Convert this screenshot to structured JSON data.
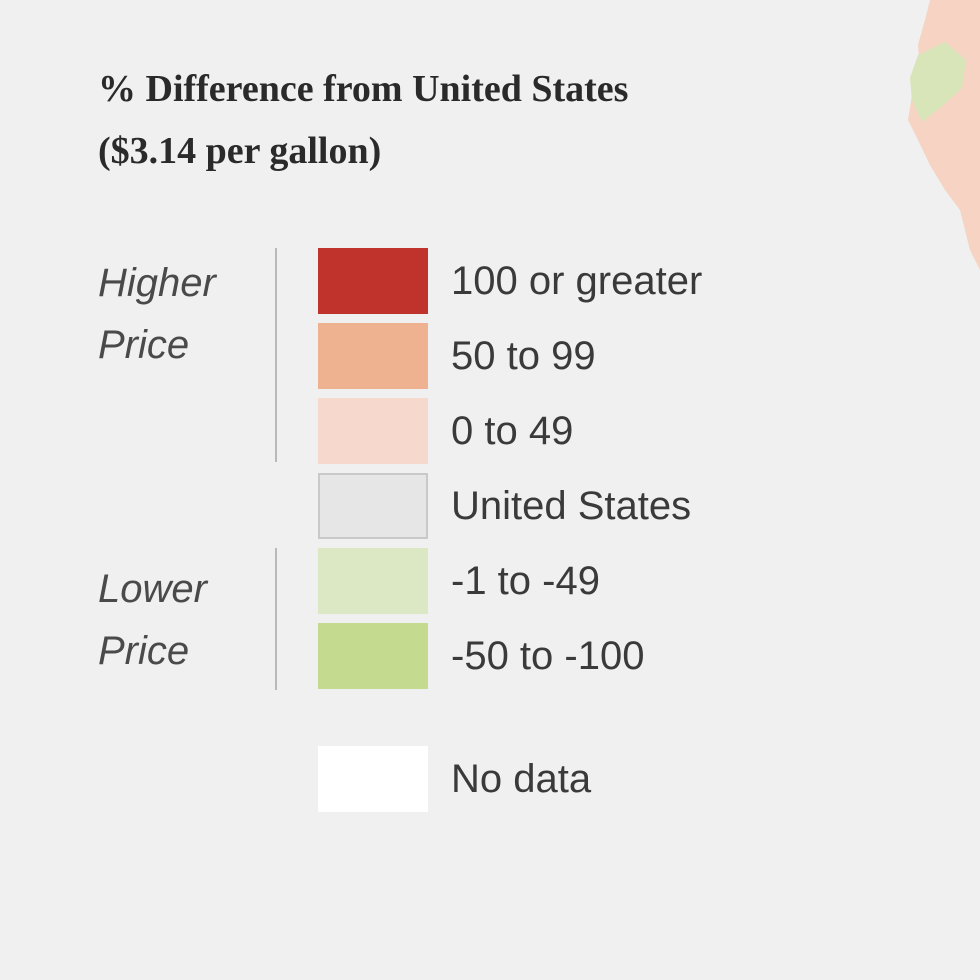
{
  "legend": {
    "title_line1": "% Difference from United States",
    "title_line2": "($3.14 per gallon)",
    "higher_line1": "Higher",
    "higher_line2": "Price",
    "lower_line1": "Lower",
    "lower_line2": "Price",
    "items": [
      {
        "label": "100 or greater",
        "color": "#c0332c"
      },
      {
        "label": "50 to 99",
        "color": "#efb290"
      },
      {
        "label": "0 to 49",
        "color": "#f6d8cc"
      },
      {
        "label": "United States",
        "color": "#e6e6e6"
      },
      {
        "label": "-1 to -49",
        "color": "#dbe8c3"
      },
      {
        "label": "-50 to -100",
        "color": "#c4da8e"
      },
      {
        "label": "No data",
        "color": "#ffffff"
      }
    ]
  }
}
